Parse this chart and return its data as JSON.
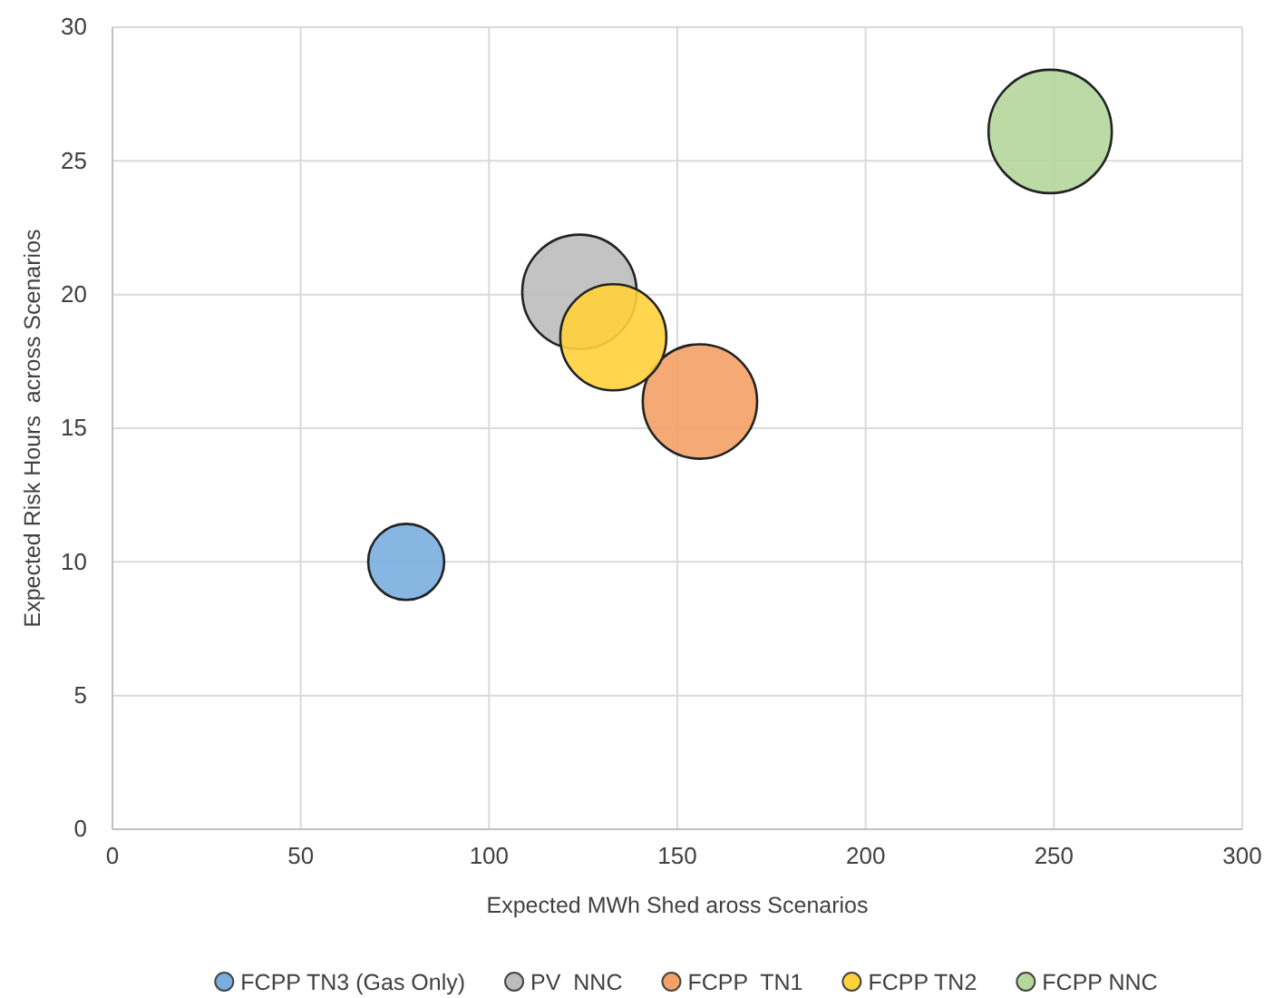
{
  "chart_data": {
    "type": "bubble",
    "xlabel": "Expected MWh Shed aross Scenarios",
    "ylabel": "Expected Risk Hours  across Scenarios",
    "xlim": [
      0,
      300
    ],
    "xticks": [
      0,
      50,
      100,
      150,
      200,
      250,
      300
    ],
    "ylim": [
      0,
      30
    ],
    "yticks": [
      0,
      5,
      10,
      15,
      20,
      25,
      30
    ],
    "grid": true,
    "legend": "bottom",
    "marker": "circle",
    "series": [
      {
        "name": "FCPP TN3 (Gas Only)",
        "color": "#7aaee0",
        "x": [
          78
        ],
        "values": [
          10
        ],
        "sizes": [
          0.38
        ]
      },
      {
        "name": "PV  NNC",
        "color": "#bdbdbd",
        "x": [
          124
        ],
        "values": [
          20.1
        ],
        "sizes": [
          0.86
        ]
      },
      {
        "name": "FCPP  TN1",
        "color": "#f4a066",
        "x": [
          156
        ],
        "values": [
          16
        ],
        "sizes": [
          0.86
        ]
      },
      {
        "name": "FCPP TN2",
        "color": "#ffd13a",
        "x": [
          133
        ],
        "values": [
          18.4
        ],
        "sizes": [
          0.74
        ]
      },
      {
        "name": "FCPP NNC",
        "color": "#b5d69c",
        "x": [
          249
        ],
        "values": [
          26.1
        ],
        "sizes": [
          1
        ]
      }
    ]
  }
}
